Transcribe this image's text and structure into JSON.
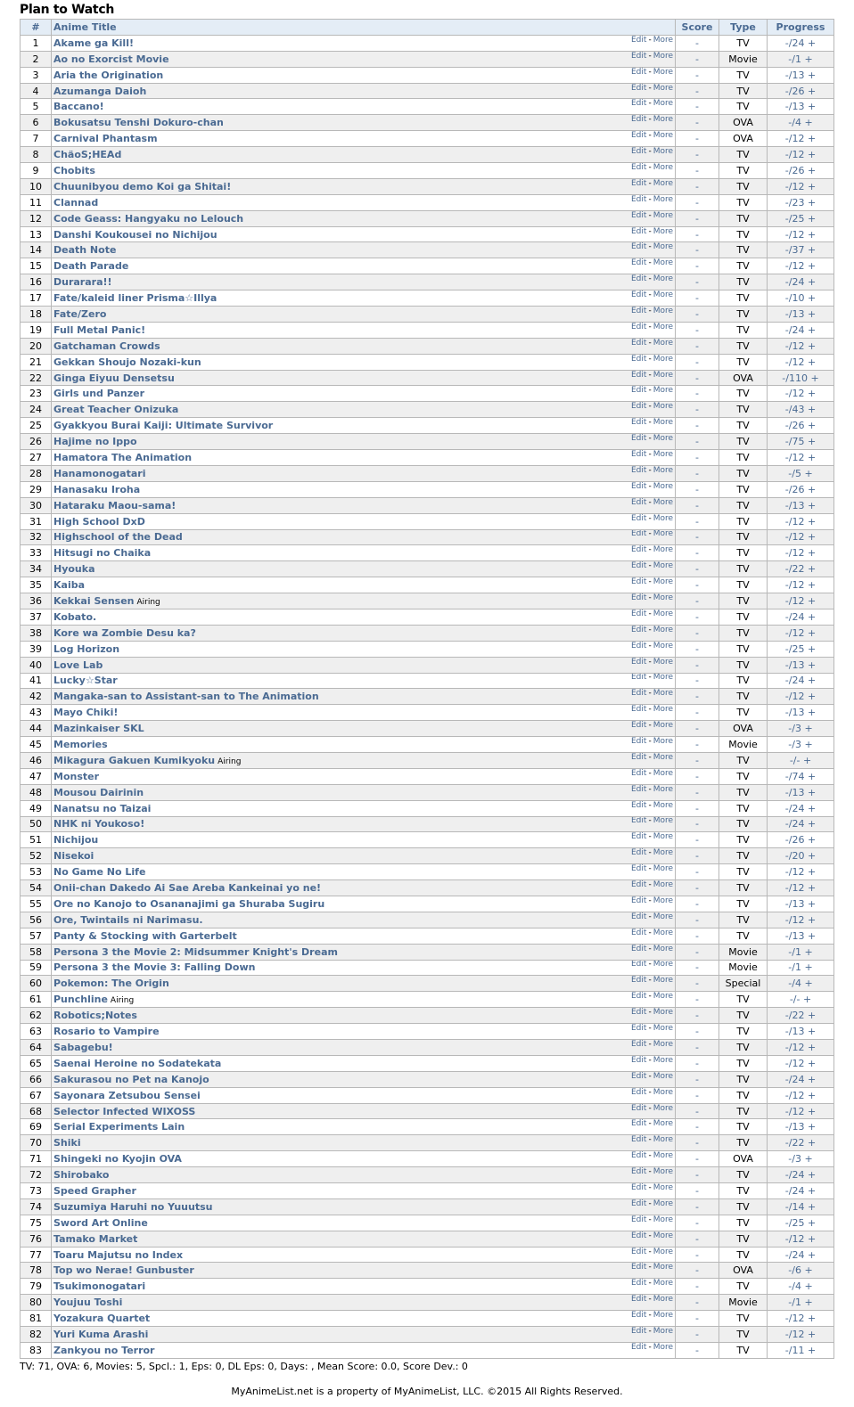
{
  "heading": "Plan to Watch",
  "columns": {
    "num": "#",
    "title": "Anime Title",
    "score": "Score",
    "type": "Type",
    "progress": "Progress"
  },
  "row_actions": {
    "edit": "Edit",
    "sep": "-",
    "more": "More",
    "plus": "+"
  },
  "rows": [
    [
      "Akame ga Kill!",
      "",
      "-",
      "TV",
      "-/24"
    ],
    [
      "Ao no Exorcist Movie",
      "",
      "-",
      "Movie",
      "-/1"
    ],
    [
      "Aria the Origination",
      "",
      "-",
      "TV",
      "-/13"
    ],
    [
      "Azumanga Daioh",
      "",
      "-",
      "TV",
      "-/26"
    ],
    [
      "Baccano!",
      "",
      "-",
      "TV",
      "-/13"
    ],
    [
      "Bokusatsu Tenshi Dokuro-chan",
      "",
      "-",
      "OVA",
      "-/4"
    ],
    [
      "Carnival Phantasm",
      "",
      "-",
      "OVA",
      "-/12"
    ],
    [
      "ChäoS;HEAd",
      "",
      "-",
      "TV",
      "-/12"
    ],
    [
      "Chobits",
      "",
      "-",
      "TV",
      "-/26"
    ],
    [
      "Chuunibyou demo Koi ga Shitai!",
      "",
      "-",
      "TV",
      "-/12"
    ],
    [
      "Clannad",
      "",
      "-",
      "TV",
      "-/23"
    ],
    [
      "Code Geass: Hangyaku no Lelouch",
      "",
      "-",
      "TV",
      "-/25"
    ],
    [
      "Danshi Koukousei no Nichijou",
      "",
      "-",
      "TV",
      "-/12"
    ],
    [
      "Death Note",
      "",
      "-",
      "TV",
      "-/37"
    ],
    [
      "Death Parade",
      "",
      "-",
      "TV",
      "-/12"
    ],
    [
      "Durarara!!",
      "",
      "-",
      "TV",
      "-/24"
    ],
    [
      "Fate/kaleid liner Prisma☆Illya",
      "",
      "-",
      "TV",
      "-/10"
    ],
    [
      "Fate/Zero",
      "",
      "-",
      "TV",
      "-/13"
    ],
    [
      "Full Metal Panic!",
      "",
      "-",
      "TV",
      "-/24"
    ],
    [
      "Gatchaman Crowds",
      "",
      "-",
      "TV",
      "-/12"
    ],
    [
      "Gekkan Shoujo Nozaki-kun",
      "",
      "-",
      "TV",
      "-/12"
    ],
    [
      "Ginga Eiyuu Densetsu",
      "",
      "-",
      "OVA",
      "-/110"
    ],
    [
      "Girls und Panzer",
      "",
      "-",
      "TV",
      "-/12"
    ],
    [
      "Great Teacher Onizuka",
      "",
      "-",
      "TV",
      "-/43"
    ],
    [
      "Gyakkyou Burai Kaiji: Ultimate Survivor",
      "",
      "-",
      "TV",
      "-/26"
    ],
    [
      "Hajime no Ippo",
      "",
      "-",
      "TV",
      "-/75"
    ],
    [
      "Hamatora The Animation",
      "",
      "-",
      "TV",
      "-/12"
    ],
    [
      "Hanamonogatari",
      "",
      "-",
      "TV",
      "-/5"
    ],
    [
      "Hanasaku Iroha",
      "",
      "-",
      "TV",
      "-/26"
    ],
    [
      "Hataraku Maou-sama!",
      "",
      "-",
      "TV",
      "-/13"
    ],
    [
      "High School DxD",
      "",
      "-",
      "TV",
      "-/12"
    ],
    [
      "Highschool of the Dead",
      "",
      "-",
      "TV",
      "-/12"
    ],
    [
      "Hitsugi no Chaika",
      "",
      "-",
      "TV",
      "-/12"
    ],
    [
      "Hyouka",
      "",
      "-",
      "TV",
      "-/22"
    ],
    [
      "Kaiba",
      "",
      "-",
      "TV",
      "-/12"
    ],
    [
      "Kekkai Sensen",
      "Airing",
      "-",
      "TV",
      "-/12"
    ],
    [
      "Kobato.",
      "",
      "-",
      "TV",
      "-/24"
    ],
    [
      "Kore wa Zombie Desu ka?",
      "",
      "-",
      "TV",
      "-/12"
    ],
    [
      "Log Horizon",
      "",
      "-",
      "TV",
      "-/25"
    ],
    [
      "Love Lab",
      "",
      "-",
      "TV",
      "-/13"
    ],
    [
      "Lucky☆Star",
      "",
      "-",
      "TV",
      "-/24"
    ],
    [
      "Mangaka-san to Assistant-san to The Animation",
      "",
      "-",
      "TV",
      "-/12"
    ],
    [
      "Mayo Chiki!",
      "",
      "-",
      "TV",
      "-/13"
    ],
    [
      "Mazinkaiser SKL",
      "",
      "-",
      "OVA",
      "-/3"
    ],
    [
      "Memories",
      "",
      "-",
      "Movie",
      "-/3"
    ],
    [
      "Mikagura Gakuen Kumikyoku",
      "Airing",
      "-",
      "TV",
      "-/-"
    ],
    [
      "Monster",
      "",
      "-",
      "TV",
      "-/74"
    ],
    [
      "Mousou Dairinin",
      "",
      "-",
      "TV",
      "-/13"
    ],
    [
      "Nanatsu no Taizai",
      "",
      "-",
      "TV",
      "-/24"
    ],
    [
      "NHK ni Youkoso!",
      "",
      "-",
      "TV",
      "-/24"
    ],
    [
      "Nichijou",
      "",
      "-",
      "TV",
      "-/26"
    ],
    [
      "Nisekoi",
      "",
      "-",
      "TV",
      "-/20"
    ],
    [
      "No Game No Life",
      "",
      "-",
      "TV",
      "-/12"
    ],
    [
      "Onii-chan Dakedo Ai Sae Areba Kankeinai yo ne!",
      "",
      "-",
      "TV",
      "-/12"
    ],
    [
      "Ore no Kanojo to Osananajimi ga Shuraba Sugiru",
      "",
      "-",
      "TV",
      "-/13"
    ],
    [
      "Ore, Twintails ni Narimasu.",
      "",
      "-",
      "TV",
      "-/12"
    ],
    [
      "Panty & Stocking with Garterbelt",
      "",
      "-",
      "TV",
      "-/13"
    ],
    [
      "Persona 3 the Movie 2: Midsummer Knight's Dream",
      "",
      "-",
      "Movie",
      "-/1"
    ],
    [
      "Persona 3 the Movie 3: Falling Down",
      "",
      "-",
      "Movie",
      "-/1"
    ],
    [
      "Pokemon: The Origin",
      "",
      "-",
      "Special",
      "-/4"
    ],
    [
      "Punchline",
      "Airing",
      "-",
      "TV",
      "-/-"
    ],
    [
      "Robotics;Notes",
      "",
      "-",
      "TV",
      "-/22"
    ],
    [
      "Rosario to Vampire",
      "",
      "-",
      "TV",
      "-/13"
    ],
    [
      "Sabagebu!",
      "",
      "-",
      "TV",
      "-/12"
    ],
    [
      "Saenai Heroine no Sodatekata",
      "",
      "-",
      "TV",
      "-/12"
    ],
    [
      "Sakurasou no Pet na Kanojo",
      "",
      "-",
      "TV",
      "-/24"
    ],
    [
      "Sayonara Zetsubou Sensei",
      "",
      "-",
      "TV",
      "-/12"
    ],
    [
      "Selector Infected WIXOSS",
      "",
      "-",
      "TV",
      "-/12"
    ],
    [
      "Serial Experiments Lain",
      "",
      "-",
      "TV",
      "-/13"
    ],
    [
      "Shiki",
      "",
      "-",
      "TV",
      "-/22"
    ],
    [
      "Shingeki no Kyojin OVA",
      "",
      "-",
      "OVA",
      "-/3"
    ],
    [
      "Shirobako",
      "",
      "-",
      "TV",
      "-/24"
    ],
    [
      "Speed Grapher",
      "",
      "-",
      "TV",
      "-/24"
    ],
    [
      "Suzumiya Haruhi no Yuuutsu",
      "",
      "-",
      "TV",
      "-/14"
    ],
    [
      "Sword Art Online",
      "",
      "-",
      "TV",
      "-/25"
    ],
    [
      "Tamako Market",
      "",
      "-",
      "TV",
      "-/12"
    ],
    [
      "Toaru Majutsu no Index",
      "",
      "-",
      "TV",
      "-/24"
    ],
    [
      "Top wo Nerae! Gunbuster",
      "",
      "-",
      "OVA",
      "-/6"
    ],
    [
      "Tsukimonogatari",
      "",
      "-",
      "TV",
      "-/4"
    ],
    [
      "Youjuu Toshi",
      "",
      "-",
      "Movie",
      "-/1"
    ],
    [
      "Yozakura Quartet",
      "",
      "-",
      "TV",
      "-/12"
    ],
    [
      "Yuri Kuma Arashi",
      "",
      "-",
      "TV",
      "-/12"
    ],
    [
      "Zankyou no Terror",
      "",
      "-",
      "TV",
      "-/11"
    ]
  ],
  "stats": "TV: 71, OVA: 6, Movies: 5, Spcl.: 1, Eps: 0, DL Eps: 0, Days: , Mean Score: 0.0, Score Dev.: 0",
  "footer": "MyAnimeList.net is a property of MyAnimeList, LLC. ©2015 All Rights Reserved.",
  "colors": {
    "link": "#4a6a92",
    "header_bg": "#e4edf6",
    "alt_row": "#efefef"
  }
}
